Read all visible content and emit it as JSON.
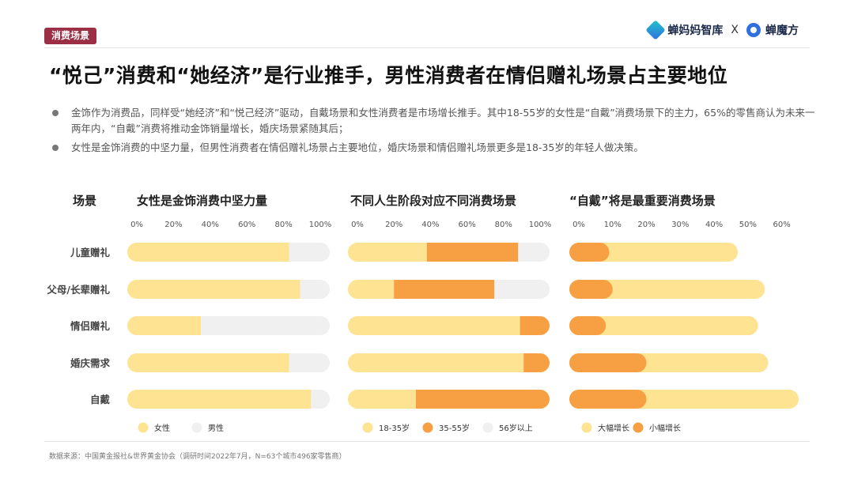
{
  "header": {
    "tag": "消费场景",
    "brand_a": "蝉妈妈智库",
    "brand_x": "X",
    "brand_b": "蝉魔方"
  },
  "title": "“悦己”消费和“她经济”是行业推手，男性消费者在情侣赠礼场景占主要地位",
  "bullets": [
    "金饰作为消费品，同样受“她经济”和“悦己经济”驱动，自戴场景和女性消费者是市场增长推手。其中18-55岁的女性是“自戴”消费场景下的主力，65%的零售商认为未来一两年内，“自戴”消费将推动金饰销量增长，婚庆场景紧随其后；",
    "女性是金饰消费的中坚力量，但男性消费者在情侣赠礼场景占主要地位，婚庆场景和情侣赠礼场景更多是18-35岁的年轻人做决策。"
  ],
  "row_header": "场景",
  "source": "数据来源：中国黄金报社&世界黄金协会（调研时间2022年7月，N=63个城市496家零售商）",
  "colors": {
    "light": "#fde392",
    "orange": "#f7a043",
    "grey": "#f0f0f0",
    "text": "#333333"
  },
  "chart_data": [
    {
      "type": "bar",
      "stacked": true,
      "orientation": "horizontal",
      "title": "女性是金饰消费中坚力量",
      "categories": [
        "儿童赠礼",
        "父母/长辈赠礼",
        "情侣赠礼",
        "婚庆需求",
        "自戴"
      ],
      "xlim": [
        0,
        100
      ],
      "xticks": [
        "0%",
        "20%",
        "40%",
        "60%",
        "80%",
        "100%"
      ],
      "series": [
        {
          "name": "女性",
          "color": "#fde392",
          "values": [
            83,
            89,
            35,
            83,
            95
          ]
        },
        {
          "name": "男性",
          "color": "#f0f0f0",
          "values": [
            17,
            11,
            65,
            17,
            5
          ]
        }
      ],
      "legend": "bottom"
    },
    {
      "type": "bar",
      "stacked": true,
      "orientation": "horizontal",
      "title": "不同人生阶段对应不同消费场景",
      "categories": [
        "儿童赠礼",
        "父母/长辈赠礼",
        "情侣赠礼",
        "婚庆需求",
        "自戴"
      ],
      "xlim": [
        0,
        100
      ],
      "xticks": [
        "0%",
        "20%",
        "40%",
        "60%",
        "80%",
        "100%"
      ],
      "series": [
        {
          "name": "18-35岁",
          "color": "#fde392",
          "values": [
            38,
            20,
            89,
            91,
            32
          ]
        },
        {
          "name": "35-55岁",
          "color": "#f7a043",
          "values": [
            50,
            55,
            10,
            8,
            67
          ]
        },
        {
          "name": "56岁以上",
          "color": "#f0f0f0",
          "values": [
            12,
            25,
            1,
            1,
            1
          ]
        }
      ],
      "legend": "bottom"
    },
    {
      "type": "bar",
      "stacked": false,
      "orientation": "horizontal",
      "title": "“自戴”将是最重要消费场景",
      "categories": [
        "儿童赠礼",
        "父母/长辈赠礼",
        "情侣赠礼",
        "婚庆需求",
        "自戴"
      ],
      "xlim": [
        0,
        65
      ],
      "xticks": [
        "0%",
        "10%",
        "20%",
        "30%",
        "40%",
        "50%",
        "60%"
      ],
      "series": [
        {
          "name": "大幅增长",
          "color": "#fde392",
          "values": [
            47,
            55,
            53,
            56,
            65
          ]
        },
        {
          "name": "小幅增长",
          "color": "#f7a043",
          "values": [
            9,
            10,
            8,
            20,
            20
          ]
        }
      ],
      "legend": "bottom"
    }
  ]
}
